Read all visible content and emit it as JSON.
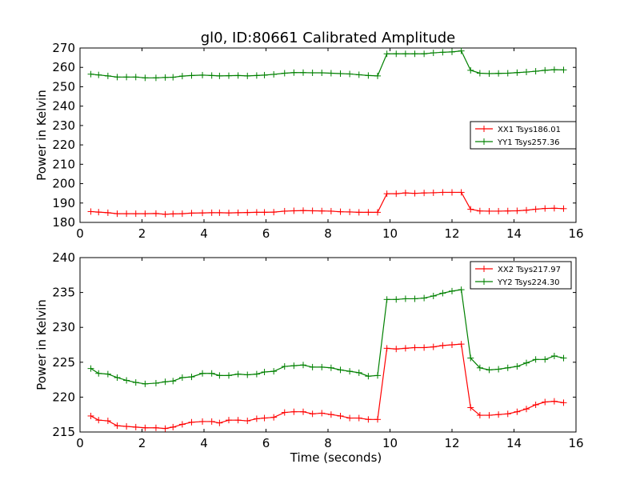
{
  "title": "gl0, ID:80661 Calibrated Amplitude",
  "chart_data": [
    {
      "type": "line",
      "title": "gl0, ID:80661 Calibrated Amplitude",
      "xlabel": "",
      "ylabel": "Power in Kelvin",
      "xlim": [
        0,
        16
      ],
      "ylim": [
        180,
        270
      ],
      "xticks": [
        "0",
        "2",
        "4",
        "6",
        "8",
        "10",
        "12",
        "14",
        "16"
      ],
      "yticks": [
        "180",
        "190",
        "200",
        "210",
        "220",
        "230",
        "240",
        "250",
        "260",
        "270"
      ],
      "legend_position": "center-right",
      "grid": false,
      "x": [
        0.35,
        0.6,
        0.9,
        1.2,
        1.5,
        1.8,
        2.1,
        2.45,
        2.75,
        3.0,
        3.3,
        3.6,
        3.95,
        4.25,
        4.5,
        4.8,
        5.1,
        5.4,
        5.7,
        5.95,
        6.25,
        6.6,
        6.9,
        7.2,
        7.5,
        7.8,
        8.1,
        8.4,
        8.7,
        9.0,
        9.3,
        9.6,
        9.9,
        10.2,
        10.5,
        10.8,
        11.1,
        11.4,
        11.7,
        12.0,
        12.3,
        12.6,
        12.9,
        13.2,
        13.5,
        13.8,
        14.1,
        14.4,
        14.7,
        15.0,
        15.3,
        15.6
      ],
      "series": [
        {
          "name": "XX1 Tsys186.01",
          "color": "#ff0000",
          "values": [
            185.6,
            185.3,
            185.0,
            184.5,
            184.5,
            184.5,
            184.5,
            184.6,
            184.2,
            184.4,
            184.5,
            184.8,
            184.9,
            185.0,
            185.0,
            184.9,
            185.0,
            185.1,
            185.2,
            185.2,
            185.3,
            185.8,
            186.0,
            186.1,
            186.0,
            185.9,
            185.8,
            185.5,
            185.4,
            185.2,
            185.2,
            185.2,
            194.8,
            194.8,
            195.2,
            195.0,
            195.2,
            195.3,
            195.5,
            195.5,
            195.5,
            186.8,
            185.9,
            185.8,
            185.8,
            185.9,
            186.0,
            186.3,
            186.8,
            187.2,
            187.3,
            187.1
          ]
        },
        {
          "name": "YY1 Tsys257.36",
          "color": "#008000",
          "values": [
            256.5,
            256.1,
            255.6,
            255.0,
            255.0,
            255.0,
            254.6,
            254.6,
            254.8,
            254.9,
            255.5,
            255.8,
            256.0,
            255.8,
            255.6,
            255.7,
            255.8,
            255.6,
            255.8,
            256.0,
            256.4,
            257.0,
            257.3,
            257.3,
            257.2,
            257.2,
            257.0,
            256.8,
            256.6,
            256.2,
            255.8,
            255.6,
            267.0,
            267.0,
            267.0,
            267.0,
            267.0,
            267.5,
            267.8,
            268.0,
            268.5,
            258.5,
            257.0,
            256.8,
            256.9,
            257.0,
            257.3,
            257.6,
            258.0,
            258.5,
            258.8,
            258.7
          ]
        }
      ]
    },
    {
      "type": "line",
      "title": "",
      "xlabel": "Time (seconds)",
      "ylabel": "Power in Kelvin",
      "xlim": [
        0,
        16
      ],
      "ylim": [
        215,
        240
      ],
      "xticks": [
        "0",
        "2",
        "4",
        "6",
        "8",
        "10",
        "12",
        "14",
        "16"
      ],
      "yticks": [
        "215",
        "220",
        "225",
        "230",
        "235",
        "240"
      ],
      "legend_position": "upper-right",
      "grid": false,
      "x": [
        0.35,
        0.6,
        0.9,
        1.2,
        1.5,
        1.8,
        2.1,
        2.45,
        2.75,
        3.0,
        3.3,
        3.6,
        3.95,
        4.25,
        4.5,
        4.8,
        5.1,
        5.4,
        5.7,
        5.95,
        6.25,
        6.6,
        6.9,
        7.2,
        7.5,
        7.8,
        8.1,
        8.4,
        8.7,
        9.0,
        9.3,
        9.6,
        9.9,
        10.2,
        10.5,
        10.8,
        11.1,
        11.4,
        11.7,
        12.0,
        12.3,
        12.6,
        12.9,
        13.2,
        13.5,
        13.8,
        14.1,
        14.4,
        14.7,
        15.0,
        15.3,
        15.6
      ],
      "series": [
        {
          "name": "XX2 Tsys217.97",
          "color": "#ff0000",
          "values": [
            217.3,
            216.7,
            216.6,
            215.9,
            215.8,
            215.7,
            215.6,
            215.6,
            215.5,
            215.7,
            216.1,
            216.4,
            216.5,
            216.5,
            216.3,
            216.7,
            216.7,
            216.6,
            216.9,
            217.0,
            217.1,
            217.8,
            217.9,
            217.9,
            217.6,
            217.7,
            217.5,
            217.3,
            217.0,
            217.0,
            216.8,
            216.8,
            227.0,
            226.9,
            227.0,
            227.1,
            227.1,
            227.2,
            227.4,
            227.5,
            227.6,
            218.5,
            217.4,
            217.4,
            217.5,
            217.6,
            217.9,
            218.3,
            218.9,
            219.3,
            219.4,
            219.2
          ]
        },
        {
          "name": "YY2 Tsys224.30",
          "color": "#008000",
          "values": [
            224.1,
            223.4,
            223.3,
            222.8,
            222.4,
            222.1,
            221.9,
            222.0,
            222.2,
            222.3,
            222.8,
            222.9,
            223.4,
            223.4,
            223.1,
            223.1,
            223.3,
            223.2,
            223.3,
            223.6,
            223.7,
            224.4,
            224.5,
            224.6,
            224.3,
            224.3,
            224.2,
            223.9,
            223.7,
            223.5,
            223.0,
            223.1,
            234.0,
            234.0,
            234.1,
            234.1,
            234.2,
            234.5,
            234.9,
            235.2,
            235.4,
            225.6,
            224.2,
            223.9,
            224.0,
            224.2,
            224.4,
            224.9,
            225.4,
            225.4,
            225.9,
            225.6
          ]
        }
      ]
    }
  ]
}
